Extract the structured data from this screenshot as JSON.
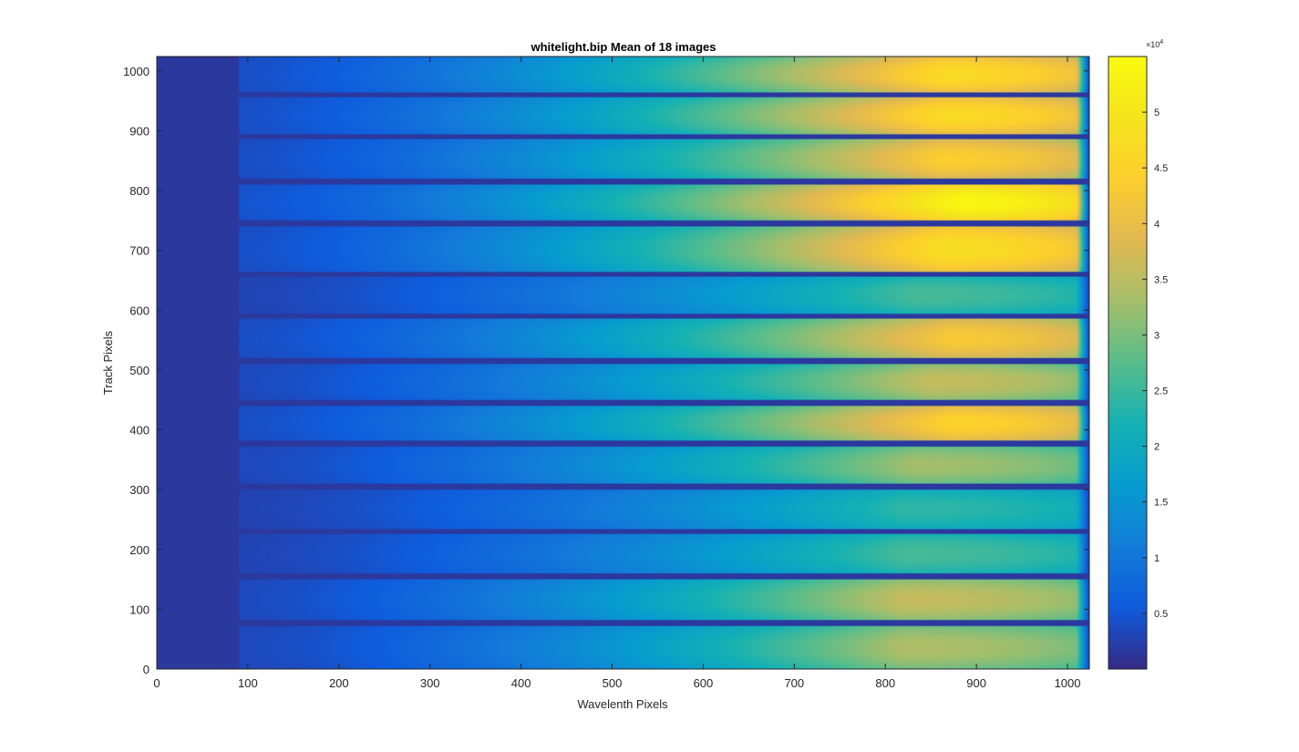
{
  "chart_data": {
    "type": "heatmap",
    "title": "whitelight.bip  Mean of 18 images",
    "xlabel": "Wavelenth Pixels",
    "ylabel": "Track Pixels",
    "xlim": [
      0,
      1024
    ],
    "ylim": [
      0,
      1024
    ],
    "x_ticks": [
      0,
      100,
      200,
      300,
      400,
      500,
      600,
      700,
      800,
      900,
      1000
    ],
    "y_ticks": [
      0,
      100,
      200,
      300,
      400,
      500,
      600,
      700,
      800,
      900,
      1000
    ],
    "colormap": "parula",
    "colorbar": {
      "range": [
        0,
        55000
      ],
      "ticks": [
        5000,
        10000,
        15000,
        20000,
        25000,
        30000,
        35000,
        40000,
        45000,
        50000
      ],
      "tick_labels": [
        "0.5",
        "1",
        "1.5",
        "2",
        "2.5",
        "3",
        "3.5",
        "4",
        "4.5",
        "5"
      ],
      "exponent_label": "×10",
      "exponent_power": "4"
    },
    "background_value": 1500,
    "dark_left_edge_x": 90,
    "tracks": [
      {
        "y_range": [
          0,
          72
        ],
        "peak": 34000,
        "peak_x": 820
      },
      {
        "y_range": [
          82,
          150
        ],
        "peak": 36000,
        "peak_x": 820
      },
      {
        "y_range": [
          160,
          225
        ],
        "peak": 26000,
        "peak_x": 820
      },
      {
        "y_range": [
          235,
          300
        ],
        "peak": 24000,
        "peak_x": 820
      },
      {
        "y_range": [
          310,
          372
        ],
        "peak": 33000,
        "peak_x": 830
      },
      {
        "y_range": [
          382,
          440
        ],
        "peak": 45000,
        "peak_x": 870
      },
      {
        "y_range": [
          450,
          510
        ],
        "peak": 36000,
        "peak_x": 850
      },
      {
        "y_range": [
          520,
          585
        ],
        "peak": 43000,
        "peak_x": 870
      },
      {
        "y_range": [
          595,
          655
        ],
        "peak": 26000,
        "peak_x": 830
      },
      {
        "y_range": [
          665,
          740
        ],
        "peak": 48000,
        "peak_x": 860
      },
      {
        "y_range": [
          750,
          810
        ],
        "peak": 54000,
        "peak_x": 880
      },
      {
        "y_range": [
          820,
          885
        ],
        "peak": 44000,
        "peak_x": 860
      },
      {
        "y_range": [
          895,
          955
        ],
        "peak": 47000,
        "peak_x": 860
      },
      {
        "y_range": [
          965,
          1024
        ],
        "peak": 47000,
        "peak_x": 860
      }
    ]
  }
}
